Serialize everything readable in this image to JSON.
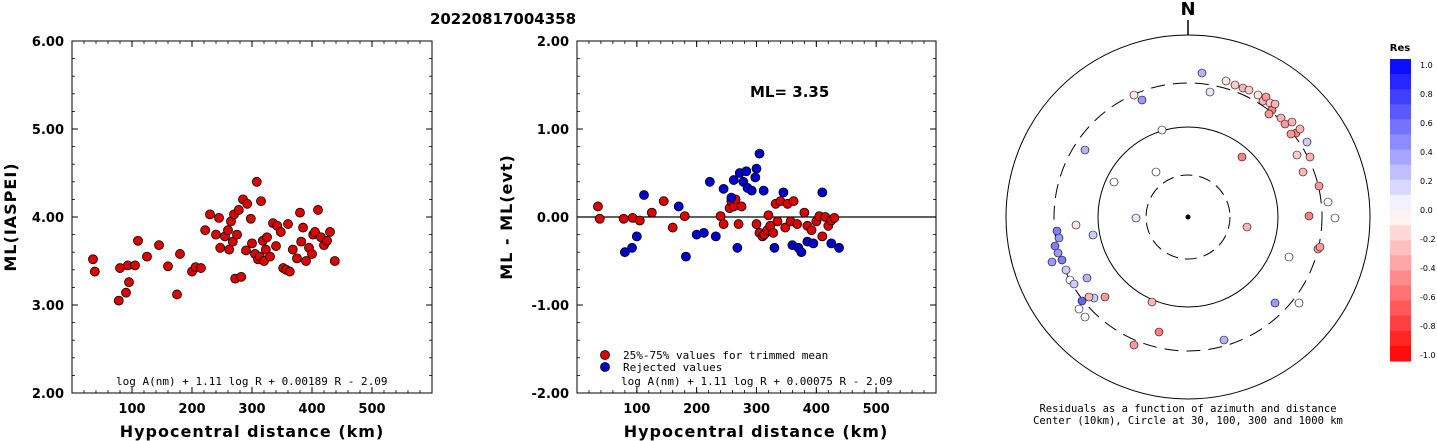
{
  "title": "20220817004358",
  "left_panel": {
    "ylabel": "ML(IASPEI)",
    "xlabel": "Hypocentral distance (km)",
    "formula": "log A(nm) + 1.11 log R + 0.00189 R - 2.09",
    "yticks": [
      "2.00",
      "3.00",
      "4.00",
      "5.00",
      "6.00"
    ],
    "xticks": [
      "100",
      "200",
      "300",
      "400",
      "500"
    ]
  },
  "middle_panel": {
    "ylabel": "ML - ML(evt)",
    "xlabel": "Hypocentral distance (km)",
    "formula": "log A(nm) + 1.11 log R + 0.00075 R - 2.09",
    "ml_text": "ML= 3.35",
    "legend_red": "25%-75% values for trimmed mean",
    "legend_blue": "Rejected values",
    "yticks": [
      "-2.00",
      "-1.00",
      "0.00",
      "1.00",
      "2.00"
    ],
    "xticks": [
      "100",
      "200",
      "300",
      "400",
      "500"
    ]
  },
  "right_panel": {
    "north": "N",
    "caption_line1": "Residuals as a function of azimuth and distance",
    "caption_line2": "Center (10km), Circle at 30, 100, 300 and 1000 km",
    "colorbar_title": "Res",
    "colorbar_ticks": [
      "1.0",
      "0.8",
      "0.6",
      "0.4",
      "0.2",
      "0.0",
      "-0.2",
      "-0.4",
      "-0.6",
      "-0.8",
      "-1.0"
    ]
  },
  "colors": {
    "red": "#dd0000",
    "blue": "#0000cc"
  },
  "chart_data": [
    {
      "type": "scatter",
      "xlim": [
        0,
        600
      ],
      "ylim": [
        2,
        6
      ],
      "series": [
        {
          "color": "#dd0000",
          "points": [
            [
              35,
              3.52
            ],
            [
              38,
              3.38
            ],
            [
              78,
              3.05
            ],
            [
              80,
              3.42
            ],
            [
              90,
              3.14
            ],
            [
              93,
              3.45
            ],
            [
              95,
              3.26
            ],
            [
              105,
              3.45
            ],
            [
              110,
              3.73
            ],
            [
              125,
              3.55
            ],
            [
              145,
              3.68
            ],
            [
              160,
              3.44
            ],
            [
              175,
              3.12
            ],
            [
              180,
              3.58
            ],
            [
              200,
              3.38
            ],
            [
              206,
              3.43
            ],
            [
              215,
              3.42
            ],
            [
              222,
              3.85
            ],
            [
              230,
              4.03
            ],
            [
              240,
              3.8
            ],
            [
              245,
              3.99
            ],
            [
              247,
              3.65
            ],
            [
              255,
              3.78
            ],
            [
              260,
              3.85
            ],
            [
              262,
              3.63
            ],
            [
              265,
              3.95
            ],
            [
              268,
              3.72
            ],
            [
              270,
              4.03
            ],
            [
              272,
              3.3
            ],
            [
              275,
              3.8
            ],
            [
              278,
              4.08
            ],
            [
              282,
              3.32
            ],
            [
              285,
              4.2
            ],
            [
              290,
              3.62
            ],
            [
              292,
              4.15
            ],
            [
              298,
              3.98
            ],
            [
              300,
              3.7
            ],
            [
              305,
              3.58
            ],
            [
              308,
              4.4
            ],
            [
              310,
              3.52
            ],
            [
              313,
              3.55
            ],
            [
              315,
              4.18
            ],
            [
              318,
              3.73
            ],
            [
              320,
              3.5
            ],
            [
              323,
              3.63
            ],
            [
              325,
              3.77
            ],
            [
              330,
              3.55
            ],
            [
              335,
              3.93
            ],
            [
              340,
              3.67
            ],
            [
              342,
              3.9
            ],
            [
              348,
              3.83
            ],
            [
              352,
              3.42
            ],
            [
              357,
              3.4
            ],
            [
              360,
              3.92
            ],
            [
              363,
              3.38
            ],
            [
              368,
              3.63
            ],
            [
              375,
              3.53
            ],
            [
              380,
              4.05
            ],
            [
              382,
              3.72
            ],
            [
              385,
              3.88
            ],
            [
              390,
              3.5
            ],
            [
              395,
              3.65
            ],
            [
              400,
              3.58
            ],
            [
              402,
              3.8
            ],
            [
              405,
              3.83
            ],
            [
              410,
              4.08
            ],
            [
              415,
              3.77
            ],
            [
              420,
              3.68
            ],
            [
              425,
              3.73
            ],
            [
              430,
              3.83
            ],
            [
              438,
              3.5
            ]
          ]
        }
      ]
    },
    {
      "type": "scatter",
      "xlim": [
        0,
        600
      ],
      "ylim": [
        -2,
        2
      ],
      "series": [
        {
          "name": "25%-75% values for trimmed mean",
          "color": "#dd0000",
          "points": [
            [
              35,
              0.12
            ],
            [
              38,
              -0.02
            ],
            [
              78,
              -0.02
            ],
            [
              93,
              -0.01
            ],
            [
              105,
              -0.04
            ],
            [
              125,
              0.05
            ],
            [
              145,
              0.18
            ],
            [
              160,
              -0.12
            ],
            [
              180,
              0.01
            ],
            [
              240,
              0.01
            ],
            [
              245,
              -0.08
            ],
            [
              255,
              0.1
            ],
            [
              258,
              0.18
            ],
            [
              262,
              0.12
            ],
            [
              265,
              0.2
            ],
            [
              270,
              -0.08
            ],
            [
              275,
              0.12
            ],
            [
              300,
              -0.08
            ],
            [
              305,
              -0.18
            ],
            [
              310,
              -0.22
            ],
            [
              313,
              -0.2
            ],
            [
              318,
              -0.15
            ],
            [
              320,
              0.02
            ],
            [
              323,
              -0.1
            ],
            [
              328,
              -0.18
            ],
            [
              332,
              0.15
            ],
            [
              335,
              -0.05
            ],
            [
              340,
              0.18
            ],
            [
              348,
              -0.12
            ],
            [
              352,
              0.15
            ],
            [
              357,
              -0.05
            ],
            [
              362,
              0.18
            ],
            [
              368,
              -0.08
            ],
            [
              380,
              0.05
            ],
            [
              385,
              -0.1
            ],
            [
              392,
              -0.15
            ],
            [
              400,
              -0.05
            ],
            [
              405,
              0.01
            ],
            [
              410,
              -0.22
            ],
            [
              415,
              0.0
            ],
            [
              420,
              -0.1
            ],
            [
              425,
              -0.04
            ],
            [
              430,
              -0.01
            ]
          ]
        },
        {
          "name": "Rejected values",
          "color": "#0000cc",
          "points": [
            [
              80,
              -0.4
            ],
            [
              92,
              -0.35
            ],
            [
              100,
              -0.22
            ],
            [
              112,
              0.25
            ],
            [
              170,
              0.12
            ],
            [
              182,
              -0.45
            ],
            [
              200,
              -0.2
            ],
            [
              212,
              -0.18
            ],
            [
              222,
              0.4
            ],
            [
              232,
              -0.22
            ],
            [
              245,
              0.32
            ],
            [
              258,
              0.22
            ],
            [
              262,
              0.42
            ],
            [
              268,
              -0.35
            ],
            [
              272,
              0.5
            ],
            [
              278,
              0.4
            ],
            [
              283,
              0.52
            ],
            [
              285,
              0.33
            ],
            [
              292,
              0.3
            ],
            [
              298,
              0.45
            ],
            [
              300,
              0.55
            ],
            [
              305,
              0.72
            ],
            [
              312,
              0.3
            ],
            [
              330,
              -0.35
            ],
            [
              345,
              0.28
            ],
            [
              360,
              -0.32
            ],
            [
              370,
              -0.35
            ],
            [
              375,
              -0.4
            ],
            [
              385,
              -0.28
            ],
            [
              395,
              -0.3
            ],
            [
              410,
              0.28
            ],
            [
              425,
              -0.3
            ],
            [
              438,
              -0.35
            ]
          ]
        }
      ]
    }
  ]
}
